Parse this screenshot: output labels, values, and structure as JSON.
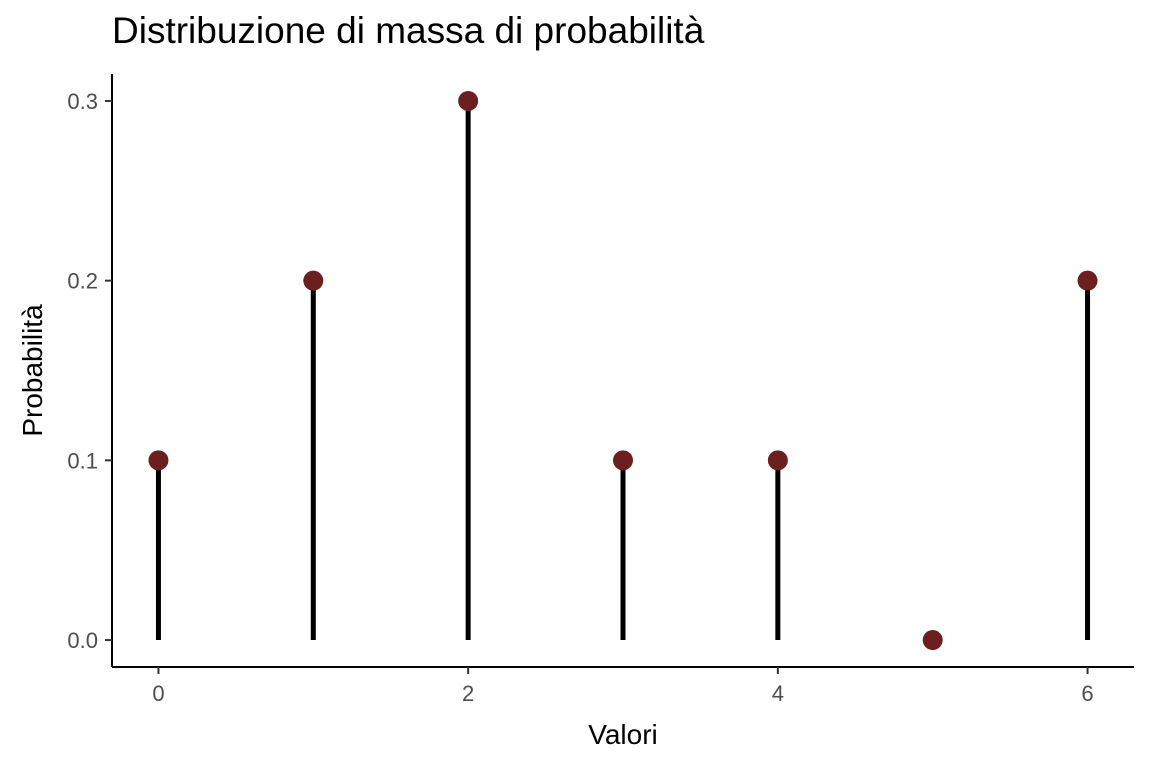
{
  "chart_data": {
    "type": "lollipop",
    "title": "Distribuzione di massa di probabilità",
    "xlabel": "Valori",
    "ylabel": "Probabilità",
    "x": [
      0,
      1,
      2,
      3,
      4,
      5,
      6
    ],
    "y": [
      0.1,
      0.2,
      0.3,
      0.1,
      0.1,
      0.0,
      0.2
    ],
    "xlim": [
      -0.3,
      6.3
    ],
    "ylim": [
      -0.015,
      0.315
    ],
    "x_ticks": [
      0,
      2,
      4,
      6
    ],
    "x_tick_labels": [
      "0",
      "2",
      "4",
      "6"
    ],
    "y_ticks": [
      0.0,
      0.1,
      0.2,
      0.3
    ],
    "y_tick_labels": [
      "0.0",
      "0.1",
      "0.2",
      "0.3"
    ],
    "grid": false,
    "legend": "none",
    "colors": {
      "point": "#6b1f1f",
      "stem": "#000000",
      "axis": "#000000",
      "tick_text": "#4d4d4d"
    }
  }
}
